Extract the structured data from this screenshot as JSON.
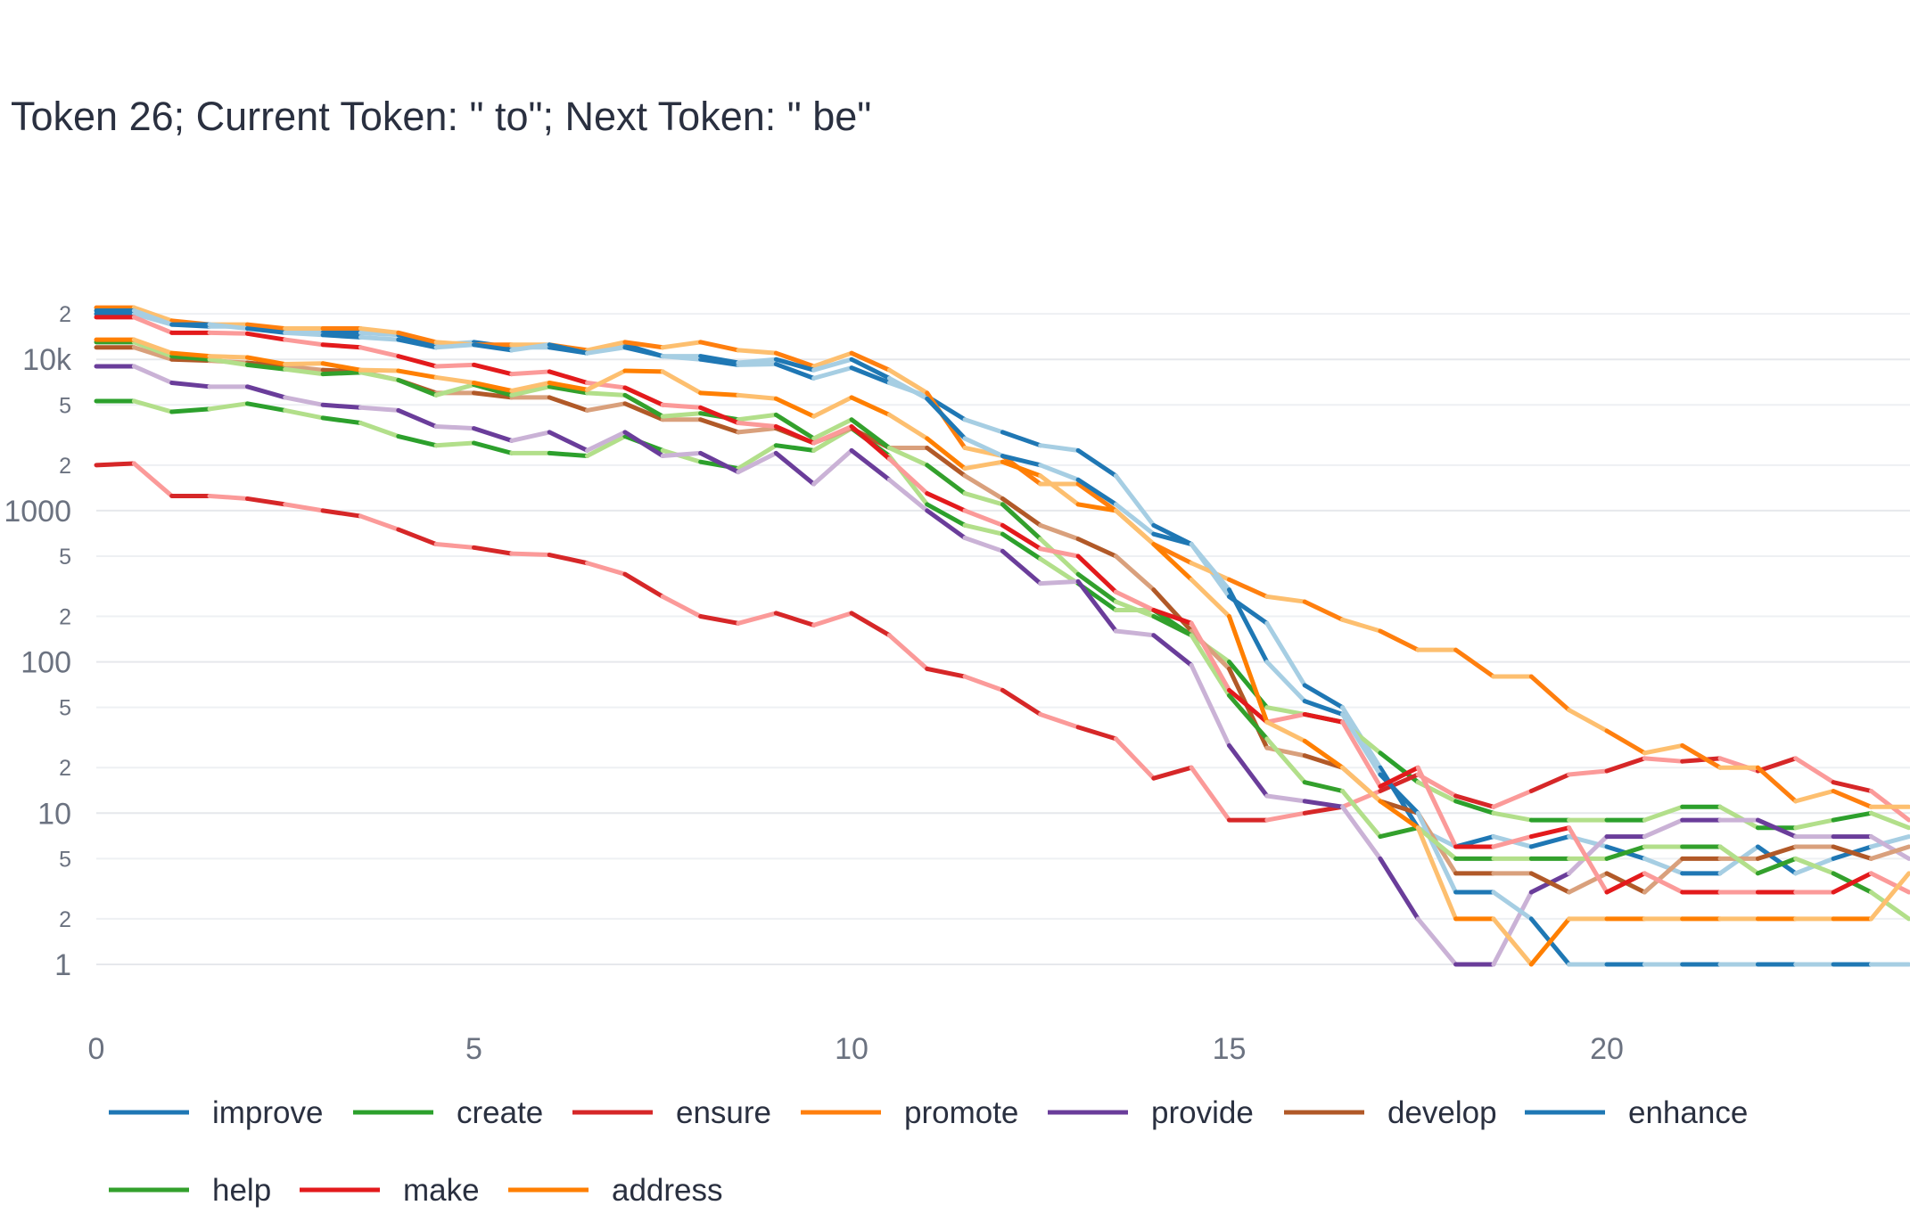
{
  "chart_data": {
    "type": "line",
    "title": "Token 26; Current Token: \" to\"; Next Token: \" be\"",
    "xlabel": "",
    "ylabel": "",
    "y_scale": "log",
    "ylim": [
      0.5,
      25000
    ],
    "xlim": [
      0,
      24
    ],
    "grid": true,
    "legend_position": "bottom",
    "x_ticks": [
      0,
      5,
      10,
      15,
      20
    ],
    "y_ticks_major": [
      "1",
      "10",
      "100",
      "1000",
      "10k"
    ],
    "y_ticks_minor": [
      "2",
      "5",
      "2",
      "5",
      "2",
      "5",
      "2",
      "5",
      "2"
    ],
    "x": [
      0,
      0.5,
      1,
      1.5,
      2,
      2.5,
      3,
      3.5,
      4,
      4.5,
      5,
      5.5,
      6,
      6.5,
      7,
      7.5,
      8,
      8.5,
      9,
      9.5,
      10,
      10.5,
      11,
      11.5,
      12,
      12.5,
      13,
      13.5,
      14,
      14.5,
      15,
      15.5,
      16,
      16.5,
      17,
      17.5,
      18,
      18.5,
      19,
      19.5,
      20,
      20.5,
      21,
      21.5,
      22,
      22.5,
      23,
      23.5,
      24
    ],
    "series": [
      {
        "name": "improve",
        "color": "#1f77b4",
        "light": "#a6cee3",
        "values": [
          20000,
          20000,
          17000,
          16500,
          16500,
          15500,
          15000,
          15000,
          14500,
          12500,
          13000,
          12000,
          12000,
          11000,
          12500,
          10500,
          10000,
          9200,
          9300,
          7500,
          8800,
          7000,
          5700,
          4000,
          3300,
          2700,
          2500,
          1700,
          800,
          600,
          270,
          180,
          70,
          50,
          20,
          8,
          6,
          7,
          6,
          7,
          6,
          5,
          4,
          4,
          6,
          4,
          5,
          6,
          7
        ]
      },
      {
        "name": "create",
        "color": "#2ca02c",
        "light": "#b2df8a",
        "values": [
          5300,
          5300,
          4500,
          4700,
          5100,
          4600,
          4100,
          3800,
          3100,
          2700,
          2800,
          2400,
          2400,
          2300,
          3100,
          2500,
          2100,
          1900,
          2700,
          2500,
          3500,
          2300,
          1100,
          800,
          700,
          480,
          330,
          220,
          220,
          150,
          100,
          50,
          45,
          40,
          25,
          16,
          12,
          10,
          9,
          9,
          9,
          9,
          11,
          11,
          8,
          8,
          9,
          10,
          8
        ]
      },
      {
        "name": "ensure",
        "color": "#d62728",
        "light": "#fb9a99",
        "values": [
          2000,
          2050,
          1250,
          1250,
          1200,
          1100,
          1000,
          920,
          750,
          600,
          570,
          520,
          510,
          450,
          380,
          270,
          200,
          180,
          210,
          175,
          210,
          150,
          90,
          80,
          65,
          45,
          37,
          31,
          17,
          20,
          9,
          9,
          10,
          11,
          14,
          18,
          13,
          11,
          14,
          18,
          19,
          23,
          22,
          23,
          19,
          23,
          16,
          14,
          9
        ]
      },
      {
        "name": "promote",
        "color": "#ff7f0e",
        "light": "#fdbf6f",
        "values": [
          22000,
          22000,
          18000,
          17000,
          17000,
          16000,
          16000,
          16000,
          15000,
          13000,
          12500,
          12500,
          12500,
          11500,
          13000,
          12000,
          13000,
          11500,
          11000,
          9000,
          11000,
          8500,
          6000,
          2600,
          2300,
          1500,
          1500,
          1000,
          600,
          450,
          350,
          270,
          250,
          190,
          160,
          120,
          120,
          80,
          80,
          48,
          35,
          25,
          28,
          20,
          20,
          12,
          14,
          11,
          11
        ]
      },
      {
        "name": "provide",
        "color": "#6a3d9a",
        "light": "#cab2d6",
        "values": [
          9000,
          9000,
          7000,
          6600,
          6600,
          5600,
          5000,
          4800,
          4600,
          3600,
          3500,
          2900,
          3300,
          2500,
          3300,
          2300,
          2400,
          1800,
          2400,
          1500,
          2500,
          1600,
          1000,
          660,
          540,
          330,
          340,
          160,
          150,
          95,
          28,
          13,
          12,
          11,
          5,
          2,
          1,
          1,
          3,
          4,
          7,
          7,
          9,
          9,
          9,
          7,
          7,
          7,
          5
        ]
      },
      {
        "name": "develop",
        "color": "#b15928",
        "light": "#d9a07c",
        "values": [
          12000,
          12000,
          10000,
          9800,
          9500,
          9000,
          8500,
          8300,
          7300,
          6000,
          6000,
          5600,
          5600,
          4600,
          5100,
          4000,
          4000,
          3300,
          3500,
          2800,
          3500,
          2600,
          2600,
          1700,
          1200,
          800,
          650,
          500,
          300,
          160,
          90,
          27,
          24,
          20,
          12,
          10,
          4,
          4,
          4,
          3,
          4,
          3,
          5,
          5,
          5,
          6,
          6,
          5,
          6
        ]
      },
      {
        "name": "enhance",
        "color": "#1f78b4",
        "light": "#a6cee3",
        "values": [
          21000,
          21000,
          17000,
          17000,
          16000,
          15000,
          14500,
          14000,
          13500,
          12000,
          12500,
          11500,
          12500,
          11000,
          12000,
          10500,
          10500,
          9500,
          10000,
          8500,
          10000,
          7500,
          5500,
          3000,
          2300,
          2000,
          1600,
          1100,
          700,
          600,
          300,
          100,
          55,
          45,
          18,
          10,
          3,
          3,
          2,
          1,
          1,
          1,
          1,
          1,
          1,
          1,
          1,
          1,
          1
        ]
      },
      {
        "name": "help",
        "color": "#33a02c",
        "light": "#b2df8a",
        "values": [
          13000,
          13000,
          10500,
          10000,
          9200,
          8600,
          8000,
          8200,
          7300,
          5800,
          6800,
          5800,
          6600,
          6000,
          5800,
          4200,
          4400,
          4000,
          4300,
          3000,
          4000,
          2600,
          2000,
          1300,
          1100,
          650,
          380,
          250,
          200,
          150,
          60,
          31,
          16,
          14,
          7,
          8,
          5,
          5,
          5,
          5,
          5,
          6,
          6,
          6,
          4,
          5,
          4,
          3,
          2
        ]
      },
      {
        "name": "make",
        "color": "#e31a1c",
        "light": "#fb9a99",
        "values": [
          19000,
          19000,
          15000,
          15000,
          14800,
          13500,
          12500,
          12000,
          10500,
          9000,
          9200,
          8000,
          8300,
          7000,
          6500,
          5000,
          4800,
          3800,
          3600,
          2800,
          3600,
          2200,
          1300,
          1000,
          800,
          560,
          500,
          290,
          220,
          180,
          65,
          40,
          45,
          40,
          15,
          20,
          6,
          6,
          7,
          8,
          3,
          4,
          3,
          3,
          3,
          3,
          3,
          4,
          3
        ]
      },
      {
        "name": "address",
        "color": "#ff7f00",
        "light": "#fdbf6f",
        "values": [
          13500,
          13500,
          11000,
          10500,
          10300,
          9300,
          9400,
          8500,
          8400,
          7600,
          7000,
          6200,
          7000,
          6300,
          8400,
          8300,
          6000,
          5800,
          5500,
          4200,
          5600,
          4300,
          3000,
          1900,
          2100,
          1700,
          1100,
          1000,
          600,
          350,
          200,
          40,
          30,
          20,
          12,
          8,
          2,
          2,
          1,
          2,
          2,
          2,
          2,
          2,
          2,
          2,
          2,
          2,
          4
        ]
      }
    ]
  }
}
